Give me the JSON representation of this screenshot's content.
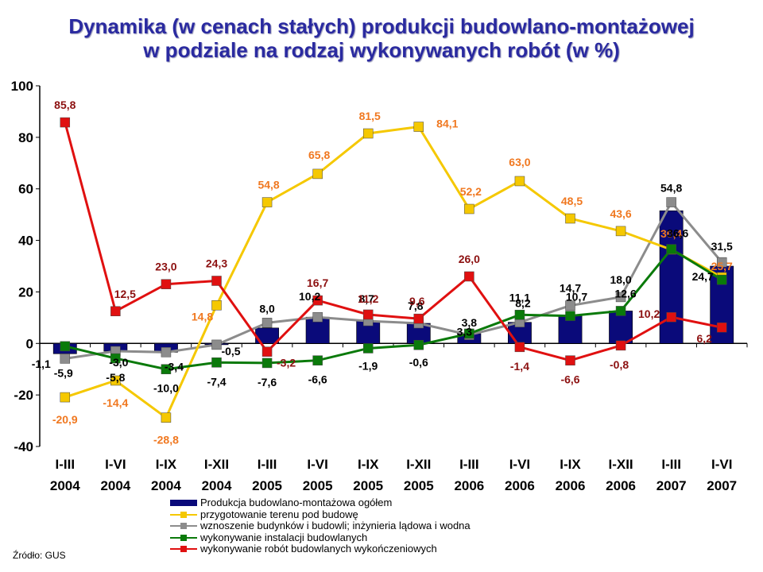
{
  "title_line1": "Dynamika (w cenach stałych) produkcji budowlano-montażowej",
  "title_line2": "w podziale na rodzaj wykonywanych robót (w %)",
  "source": "Źródło: GUS",
  "chart_data": {
    "type": "bar+line",
    "ylim": [
      -40,
      100
    ],
    "yticks": [
      -40,
      -20,
      0,
      20,
      40,
      60,
      80,
      100
    ],
    "grid": false,
    "legend_position": "bottom",
    "categories": [
      [
        "I-III",
        "2004"
      ],
      [
        "I-VI",
        "2004"
      ],
      [
        "I-IX",
        "2004"
      ],
      [
        "I-XII",
        "2004"
      ],
      [
        "I-III",
        "2005"
      ],
      [
        "I-VI",
        "2005"
      ],
      [
        "I-IX",
        "2005"
      ],
      [
        "I-XII",
        "2005"
      ],
      [
        "I-III",
        "2006"
      ],
      [
        "I-VI",
        "2006"
      ],
      [
        "I-IX",
        "2006"
      ],
      [
        "I-XII",
        "2006"
      ],
      [
        "I-III",
        "2007"
      ],
      [
        "I-VI",
        "2007"
      ]
    ],
    "series": [
      {
        "name": "Produkcja budowlano-montażowa ogółem",
        "type": "bar",
        "color": "#0a0a7a",
        "label_color": "#000000",
        "values": [
          -4.0,
          -3.0,
          -3.4,
          -0.5,
          6.0,
          10.2,
          8.7,
          7.8,
          3.8,
          8.2,
          10.7,
          12.6,
          51.5,
          30.0
        ],
        "labels": [
          null,
          null,
          null,
          null,
          null,
          "10,2",
          "8,7",
          "7,8",
          null,
          "8,2",
          "10,7",
          "12,6",
          null,
          null
        ]
      },
      {
        "name": "przygotowanie terenu pod budowę",
        "type": "line",
        "color": "#f5c800",
        "label_color": "#f07820",
        "values": [
          -20.9,
          -14.4,
          -28.8,
          14.8,
          54.8,
          65.8,
          81.5,
          84.1,
          52.2,
          63.0,
          48.5,
          43.6,
          36.4,
          25.7
        ],
        "labels": [
          "-20,9",
          "-14,4",
          "-28,8",
          "14,8",
          "54,8",
          "65,8",
          "81,5",
          "84,1",
          "52,2",
          "63,0",
          "48,5",
          "43,6",
          "36,4",
          "25,7"
        ]
      },
      {
        "name": "wznoszenie budynków i budowli; inżynieria lądowa i wodna",
        "type": "line",
        "color": "#8c8c8c",
        "label_color": "#000000",
        "values": [
          -5.9,
          -3.0,
          -3.4,
          -0.5,
          8.0,
          10.2,
          8.7,
          7.8,
          3.3,
          8.2,
          14.7,
          18.0,
          54.8,
          31.5
        ],
        "labels": [
          "-5,9",
          "-3,0",
          "-3,4",
          "-0,5",
          "8,0",
          null,
          null,
          null,
          "3,3",
          null,
          "14,7",
          "18,0",
          "54,8",
          "31,5"
        ]
      },
      {
        "name": "wykonywanie instalacji budowlanych",
        "type": "line",
        "color": "#0a7a0a",
        "label_color": "#000000",
        "values": [
          -1.1,
          -5.8,
          -10.0,
          -7.4,
          -7.6,
          -6.6,
          -1.9,
          -0.6,
          3.8,
          11.1,
          10.7,
          12.6,
          36.6,
          24.7
        ],
        "labels": [
          "-1,1",
          "-5,8",
          "-10,0",
          "-7,4",
          "-7,6",
          "-6,6",
          "-1,9",
          "-0,6",
          "3,8",
          "11,1",
          null,
          null,
          "36,6",
          "24,7"
        ]
      },
      {
        "name": "wykonywanie robót budowlanych wykończeniowych",
        "type": "line",
        "color": "#e01010",
        "label_color": "#8c1010",
        "values": [
          85.8,
          12.5,
          23.0,
          24.3,
          -3.2,
          16.7,
          11.2,
          9.6,
          26.0,
          -1.4,
          -6.6,
          -0.8,
          10.2,
          6.2
        ],
        "labels": [
          "85,8",
          "12,5",
          "23,0",
          "24,3",
          "-3,2",
          "16,7",
          "11,2",
          "9,6",
          "26,0",
          "-1,4",
          "-6,6",
          "-0,8",
          "10,2",
          "6,2"
        ]
      }
    ]
  }
}
